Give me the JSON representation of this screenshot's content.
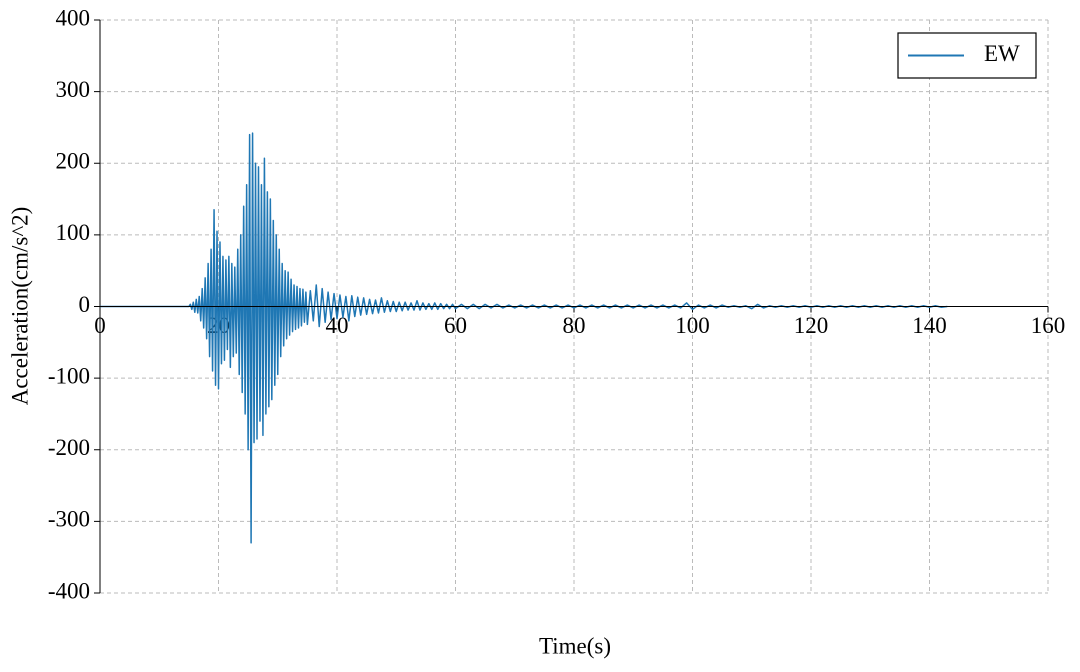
{
  "chart_data": {
    "type": "line",
    "xlabel": "Time(s)",
    "ylabel": "Acceleration(cm/s^2)",
    "xlim": [
      0,
      160
    ],
    "xticks": [
      0,
      20,
      40,
      60,
      80,
      100,
      120,
      140,
      160
    ],
    "ylim": [
      -400,
      400
    ],
    "yticks": [
      -400,
      -300,
      -200,
      -100,
      0,
      100,
      200,
      300,
      400
    ],
    "grid": true,
    "legend": "upper right",
    "x": [
      0,
      15,
      15.25,
      15.5,
      15.75,
      16,
      16.25,
      16.5,
      16.75,
      17,
      17.25,
      17.5,
      17.75,
      18,
      18.25,
      18.5,
      18.75,
      19,
      19.25,
      19.5,
      19.75,
      20,
      20.25,
      20.5,
      20.75,
      21,
      21.25,
      21.5,
      21.75,
      22,
      22.25,
      22.5,
      22.75,
      23,
      23.25,
      23.5,
      23.75,
      24,
      24.25,
      24.5,
      24.75,
      25,
      25.25,
      25.5,
      25.75,
      26,
      26.25,
      26.5,
      26.75,
      27,
      27.25,
      27.5,
      27.75,
      28,
      28.25,
      28.5,
      28.75,
      29,
      29.25,
      29.5,
      29.75,
      30,
      30.25,
      30.5,
      30.75,
      31,
      31.25,
      31.5,
      31.75,
      32,
      32.25,
      32.5,
      32.75,
      33,
      33.25,
      33.5,
      33.75,
      34,
      34.25,
      34.5,
      34.75,
      35,
      35.5,
      36,
      36.5,
      37,
      37.5,
      38,
      38.5,
      39,
      39.5,
      40,
      40.5,
      41,
      41.5,
      42,
      42.5,
      43,
      43.5,
      44,
      44.5,
      45,
      45.5,
      46,
      46.5,
      47,
      47.5,
      48,
      48.5,
      49,
      49.5,
      50,
      50.5,
      51,
      51.5,
      52,
      52.5,
      53,
      53.5,
      54,
      54.5,
      55,
      55.5,
      56,
      56.5,
      57,
      57.5,
      58,
      58.5,
      59,
      59.5,
      60,
      61,
      62,
      63,
      64,
      65,
      66,
      67,
      68,
      69,
      70,
      71,
      72,
      73,
      74,
      75,
      76,
      77,
      78,
      79,
      80,
      81,
      82,
      83,
      84,
      85,
      86,
      87,
      88,
      89,
      90,
      91,
      92,
      93,
      94,
      95,
      96,
      97,
      98,
      99,
      100,
      101,
      102,
      103,
      104,
      105,
      106,
      107,
      108,
      109,
      110,
      111,
      112,
      113,
      114,
      115,
      116,
      117,
      118,
      119,
      120,
      121,
      122,
      123,
      124,
      125,
      126,
      127,
      128,
      129,
      130,
      131,
      132,
      133,
      134,
      135,
      136,
      137,
      138,
      139,
      140,
      141,
      142,
      143
    ],
    "series": [
      {
        "name": "EW",
        "color": "#1f77b4",
        "values": [
          0,
          0,
          3,
          -4,
          6,
          -8,
          10,
          -9,
          14,
          -20,
          25,
          -30,
          40,
          -45,
          60,
          -70,
          80,
          -90,
          135,
          -110,
          105,
          -115,
          90,
          -80,
          70,
          -75,
          65,
          -60,
          70,
          -85,
          60,
          -70,
          55,
          -65,
          80,
          -95,
          100,
          -120,
          140,
          -150,
          170,
          -200,
          240,
          -330,
          242,
          -190,
          200,
          -185,
          195,
          -160,
          170,
          -180,
          207,
          -150,
          160,
          -140,
          150,
          -130,
          120,
          -110,
          100,
          -95,
          80,
          -70,
          60,
          -55,
          50,
          -45,
          48,
          -40,
          38,
          -35,
          30,
          -32,
          28,
          -30,
          25,
          -27,
          24,
          -22,
          20,
          -25,
          22,
          -20,
          30,
          -28,
          25,
          -22,
          20,
          -18,
          18,
          -17,
          16,
          -15,
          14,
          -20,
          15,
          -14,
          13,
          -12,
          12,
          -11,
          10,
          -10,
          9,
          -9,
          12,
          -8,
          8,
          -7,
          7,
          -7,
          6,
          -6,
          6,
          -5,
          5,
          -5,
          8,
          -5,
          5,
          -4,
          4,
          -4,
          5,
          -4,
          4,
          -3,
          3,
          -3,
          3,
          -3,
          3,
          -3,
          3,
          -3,
          3,
          -2,
          3,
          -2,
          2,
          -2,
          2,
          -2,
          2,
          -2,
          2,
          -2,
          2,
          -2,
          2,
          -2,
          2,
          -2,
          2,
          -2,
          2,
          -2,
          2,
          -2,
          2,
          -2,
          2,
          -2,
          2,
          -2,
          2,
          -2,
          2,
          -2,
          5,
          -4,
          2,
          -2,
          2,
          -2,
          2,
          -1,
          1,
          -1,
          1,
          -3,
          3,
          -2,
          1,
          -1,
          1,
          -1,
          1,
          -1,
          1,
          -1,
          1,
          -1,
          1,
          -1,
          1,
          -1,
          1,
          -1,
          1,
          -1,
          1,
          -1,
          1,
          -1,
          1,
          -1,
          1,
          -1,
          1,
          -1,
          1,
          -1,
          0
        ]
      }
    ]
  }
}
